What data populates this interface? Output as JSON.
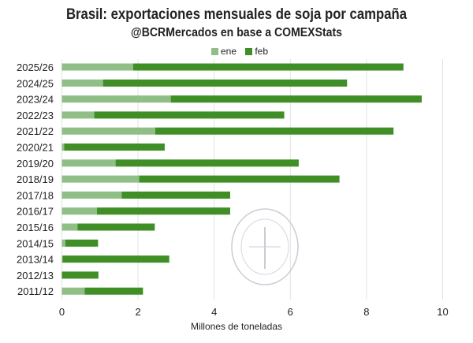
{
  "chart_data": {
    "type": "bar",
    "orientation": "horizontal",
    "stacked": true,
    "title": "Brasil: exportaciones mensuales de soja por campaña",
    "subtitle": "@BCRMercados en base a COMEXStats",
    "xlabel": "Millones de toneladas",
    "ylabel": "",
    "xlim": [
      0,
      10
    ],
    "xticks": [
      0,
      2,
      4,
      6,
      8,
      10
    ],
    "grid": "vertical",
    "legend": "top",
    "categories": [
      "2025/26",
      "2024/25",
      "2023/24",
      "2022/23",
      "2021/22",
      "2020/21",
      "2019/20",
      "2018/19",
      "2017/18",
      "2016/17",
      "2015/16",
      "2014/15",
      "2013/14",
      "2012/13",
      "2011/12"
    ],
    "series": [
      {
        "name": "ene",
        "color": "#8fbf87",
        "values": [
          1.87,
          1.08,
          2.86,
          0.85,
          2.45,
          0.06,
          1.41,
          2.03,
          1.57,
          0.92,
          0.41,
          0.09,
          0.02,
          0.0,
          0.6
        ]
      },
      {
        "name": "feb",
        "color": "#3f8f26",
        "values": [
          7.1,
          6.41,
          6.59,
          4.99,
          6.26,
          2.64,
          4.81,
          5.26,
          2.85,
          3.5,
          2.03,
          0.86,
          2.8,
          0.96,
          1.53
        ]
      }
    ],
    "watermark": "BOLSA DE COMERCIO DE ROSARIO"
  }
}
